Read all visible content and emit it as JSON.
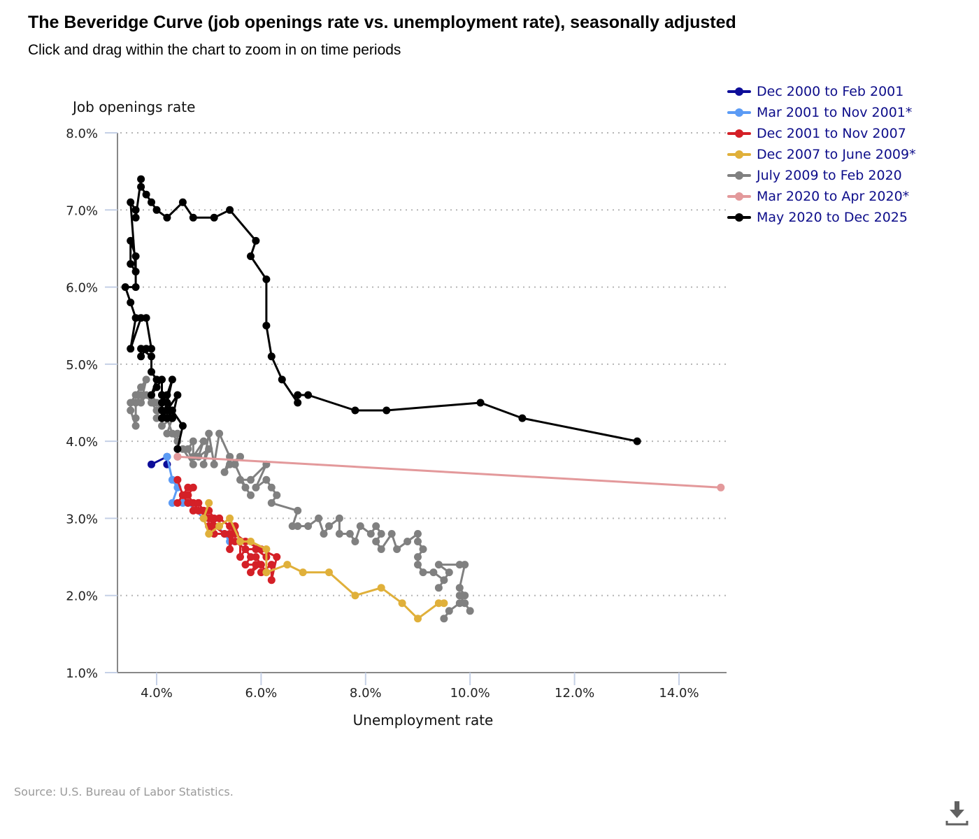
{
  "header": {
    "title": "The Beveridge Curve (job openings rate vs. unemployment rate), seasonally adjusted",
    "subtitle": "Click and drag within the chart to zoom in on time periods"
  },
  "footer": {
    "source": "Source: U.S. Bureau of Labor Statistics.",
    "download_icon": "download-icon"
  },
  "chart_data": {
    "type": "line",
    "title": "The Beveridge Curve (job openings rate vs. unemployment rate), seasonally adjusted",
    "xlabel": "Unemployment rate",
    "ylabel": "Job openings rate",
    "xlim": [
      3.3,
      14.9
    ],
    "ylim": [
      1.0,
      8.0
    ],
    "x_ticks": [
      4.0,
      6.0,
      8.0,
      10.0,
      12.0,
      14.0
    ],
    "x_tick_labels": [
      "4.0%",
      "6.0%",
      "8.0%",
      "10.0%",
      "12.0%",
      "14.0%"
    ],
    "y_ticks": [
      1.0,
      2.0,
      3.0,
      4.0,
      5.0,
      6.0,
      7.0,
      8.0
    ],
    "y_tick_labels": [
      "1.0%",
      "2.0%",
      "3.0%",
      "4.0%",
      "5.0%",
      "6.0%",
      "7.0%",
      "8.0%"
    ],
    "grid": "horizontal-dotted",
    "legend_position": "top-right",
    "series": [
      {
        "name": "Dec 2000 to Feb 2001",
        "color": "#0d0d99",
        "points": [
          [
            3.9,
            3.7
          ],
          [
            4.2,
            3.8
          ],
          [
            4.2,
            3.7
          ]
        ]
      },
      {
        "name": "Mar 2001 to Nov 2001*",
        "color": "#5b9bf5",
        "points": [
          [
            4.2,
            3.8
          ],
          [
            4.3,
            3.5
          ],
          [
            4.4,
            3.4
          ],
          [
            4.3,
            3.2
          ],
          [
            4.5,
            3.2
          ],
          [
            4.6,
            3.2
          ],
          [
            4.9,
            3.0
          ],
          [
            5.0,
            3.0
          ],
          [
            5.3,
            2.8
          ],
          [
            5.4,
            2.7
          ],
          [
            5.6,
            2.7
          ]
        ]
      },
      {
        "name": "Dec 2001 to Nov 2007",
        "color": "#d42027",
        "points": [
          [
            4.4,
            3.5
          ],
          [
            4.5,
            3.3
          ],
          [
            4.4,
            3.2
          ],
          [
            4.6,
            3.4
          ],
          [
            4.7,
            3.4
          ],
          [
            4.6,
            3.3
          ],
          [
            4.7,
            3.2
          ],
          [
            4.8,
            3.2
          ],
          [
            4.7,
            3.1
          ],
          [
            4.9,
            3.1
          ],
          [
            5.0,
            3.1
          ],
          [
            5.1,
            3.0
          ],
          [
            5.2,
            3.0
          ],
          [
            5.0,
            2.9
          ],
          [
            5.1,
            2.8
          ],
          [
            5.4,
            2.8
          ],
          [
            5.4,
            2.6
          ],
          [
            5.5,
            2.9
          ],
          [
            5.6,
            2.7
          ],
          [
            5.6,
            2.5
          ],
          [
            5.7,
            2.6
          ],
          [
            5.8,
            2.5
          ],
          [
            5.7,
            2.4
          ],
          [
            5.9,
            2.4
          ],
          [
            5.8,
            2.3
          ],
          [
            6.0,
            2.4
          ],
          [
            5.9,
            2.5
          ],
          [
            6.1,
            2.3
          ],
          [
            6.0,
            2.3
          ],
          [
            6.2,
            2.4
          ],
          [
            6.2,
            2.2
          ],
          [
            6.3,
            2.5
          ],
          [
            6.0,
            2.6
          ],
          [
            5.7,
            2.7
          ],
          [
            5.5,
            2.8
          ],
          [
            5.4,
            2.9
          ],
          [
            5.2,
            3.0
          ],
          [
            5.0,
            3.0
          ],
          [
            4.8,
            3.1
          ],
          [
            4.7,
            3.2
          ],
          [
            4.6,
            3.3
          ],
          [
            4.5,
            3.3
          ],
          [
            4.6,
            3.2
          ],
          [
            4.8,
            3.2
          ],
          [
            4.9,
            3.1
          ],
          [
            5.0,
            3.0
          ],
          [
            5.1,
            2.9
          ],
          [
            5.3,
            2.8
          ],
          [
            5.5,
            2.7
          ],
          [
            5.7,
            2.6
          ],
          [
            5.9,
            2.6
          ],
          [
            6.1,
            2.5
          ]
        ]
      },
      {
        "name": "Dec 2007 to June 2009*",
        "color": "#e0b03a",
        "points": [
          [
            5.0,
            3.2
          ],
          [
            4.9,
            3.0
          ],
          [
            5.0,
            2.8
          ],
          [
            5.2,
            2.9
          ],
          [
            5.4,
            3.0
          ],
          [
            5.6,
            2.7
          ],
          [
            5.8,
            2.7
          ],
          [
            6.1,
            2.6
          ],
          [
            6.1,
            2.3
          ],
          [
            6.5,
            2.4
          ],
          [
            6.8,
            2.3
          ],
          [
            7.3,
            2.3
          ],
          [
            7.8,
            2.0
          ],
          [
            8.3,
            2.1
          ],
          [
            8.7,
            1.9
          ],
          [
            9.0,
            1.7
          ],
          [
            9.4,
            1.9
          ],
          [
            9.5,
            1.9
          ]
        ]
      },
      {
        "name": "July 2009 to Feb 2020",
        "color": "#808080",
        "points": [
          [
            9.5,
            1.7
          ],
          [
            9.6,
            1.8
          ],
          [
            9.8,
            1.9
          ],
          [
            9.9,
            1.9
          ],
          [
            10.0,
            1.8
          ],
          [
            9.8,
            2.0
          ],
          [
            9.9,
            2.0
          ],
          [
            9.8,
            2.1
          ],
          [
            9.9,
            2.4
          ],
          [
            9.8,
            2.4
          ],
          [
            9.4,
            2.4
          ],
          [
            9.6,
            2.3
          ],
          [
            9.4,
            2.1
          ],
          [
            9.5,
            2.2
          ],
          [
            9.3,
            2.3
          ],
          [
            9.1,
            2.3
          ],
          [
            9.0,
            2.4
          ],
          [
            9.0,
            2.5
          ],
          [
            9.1,
            2.6
          ],
          [
            9.0,
            2.7
          ],
          [
            9.0,
            2.8
          ],
          [
            8.8,
            2.7
          ],
          [
            8.6,
            2.6
          ],
          [
            8.5,
            2.8
          ],
          [
            8.3,
            2.6
          ],
          [
            8.2,
            2.7
          ],
          [
            8.3,
            2.8
          ],
          [
            8.2,
            2.9
          ],
          [
            8.1,
            2.8
          ],
          [
            7.9,
            2.9
          ],
          [
            7.8,
            2.7
          ],
          [
            7.7,
            2.8
          ],
          [
            7.5,
            2.8
          ],
          [
            7.5,
            3.0
          ],
          [
            7.3,
            2.9
          ],
          [
            7.2,
            2.8
          ],
          [
            7.1,
            3.0
          ],
          [
            6.9,
            2.9
          ],
          [
            6.7,
            2.9
          ],
          [
            6.6,
            2.9
          ],
          [
            6.7,
            3.1
          ],
          [
            6.2,
            3.2
          ],
          [
            6.3,
            3.3
          ],
          [
            6.2,
            3.4
          ],
          [
            6.1,
            3.5
          ],
          [
            5.9,
            3.4
          ],
          [
            6.1,
            3.7
          ],
          [
            5.8,
            3.5
          ],
          [
            5.6,
            3.5
          ],
          [
            5.8,
            3.3
          ],
          [
            5.7,
            3.4
          ],
          [
            5.5,
            3.7
          ],
          [
            5.6,
            3.8
          ],
          [
            5.4,
            3.7
          ],
          [
            5.3,
            3.6
          ],
          [
            5.4,
            3.8
          ],
          [
            5.2,
            4.1
          ],
          [
            5.1,
            3.7
          ],
          [
            5.0,
            4.1
          ],
          [
            4.9,
            3.7
          ],
          [
            5.0,
            3.9
          ],
          [
            4.8,
            3.8
          ],
          [
            4.9,
            4.0
          ],
          [
            4.7,
            3.8
          ],
          [
            4.7,
            4.0
          ],
          [
            4.6,
            3.9
          ],
          [
            4.7,
            3.7
          ],
          [
            4.5,
            3.9
          ],
          [
            4.4,
            3.9
          ],
          [
            4.4,
            4.1
          ],
          [
            4.2,
            4.1
          ],
          [
            4.3,
            4.3
          ],
          [
            4.1,
            4.2
          ],
          [
            4.1,
            4.3
          ],
          [
            4.0,
            4.3
          ],
          [
            4.1,
            4.5
          ],
          [
            4.0,
            4.4
          ],
          [
            3.9,
            4.5
          ],
          [
            3.8,
            4.6
          ],
          [
            3.7,
            4.5
          ],
          [
            3.8,
            4.8
          ],
          [
            3.7,
            4.7
          ],
          [
            3.6,
            4.6
          ],
          [
            3.5,
            4.5
          ],
          [
            3.5,
            4.4
          ],
          [
            3.6,
            4.2
          ],
          [
            3.6,
            4.3
          ],
          [
            3.6,
            4.5
          ],
          [
            3.7,
            4.6
          ],
          [
            3.9,
            4.6
          ],
          [
            4.0,
            4.5
          ],
          [
            4.1,
            4.4
          ],
          [
            4.2,
            4.3
          ],
          [
            4.3,
            4.1
          ],
          [
            4.4,
            4.0
          ],
          [
            4.4,
            3.8
          ]
        ]
      },
      {
        "name": "Mar 2020 to Apr 2020*",
        "color": "#e3999b",
        "points": [
          [
            4.4,
            3.8
          ],
          [
            14.8,
            3.4
          ]
        ]
      },
      {
        "name": "May 2020 to Dec 2025",
        "color": "#000000",
        "points": [
          [
            13.2,
            4.0
          ],
          [
            11.0,
            4.3
          ],
          [
            10.2,
            4.5
          ],
          [
            8.4,
            4.4
          ],
          [
            7.8,
            4.4
          ],
          [
            6.9,
            4.6
          ],
          [
            6.7,
            4.6
          ],
          [
            6.7,
            4.5
          ],
          [
            6.4,
            4.8
          ],
          [
            6.2,
            5.1
          ],
          [
            6.1,
            5.5
          ],
          [
            6.1,
            6.1
          ],
          [
            5.8,
            6.4
          ],
          [
            5.9,
            6.6
          ],
          [
            5.4,
            7.0
          ],
          [
            5.1,
            6.9
          ],
          [
            4.7,
            6.9
          ],
          [
            4.5,
            7.1
          ],
          [
            4.2,
            6.9
          ],
          [
            4.0,
            7.0
          ],
          [
            3.9,
            7.1
          ],
          [
            3.8,
            7.2
          ],
          [
            3.7,
            7.3
          ],
          [
            3.7,
            7.4
          ],
          [
            3.6,
            6.9
          ],
          [
            3.6,
            7.0
          ],
          [
            3.5,
            7.1
          ],
          [
            3.6,
            6.2
          ],
          [
            3.5,
            6.3
          ],
          [
            3.5,
            6.6
          ],
          [
            3.6,
            6.4
          ],
          [
            3.6,
            6.0
          ],
          [
            3.4,
            6.0
          ],
          [
            3.5,
            5.8
          ],
          [
            3.6,
            5.6
          ],
          [
            3.5,
            5.2
          ],
          [
            3.7,
            5.6
          ],
          [
            3.8,
            5.6
          ],
          [
            3.9,
            5.2
          ],
          [
            3.8,
            5.2
          ],
          [
            3.7,
            5.1
          ],
          [
            3.7,
            5.2
          ],
          [
            3.9,
            5.1
          ],
          [
            3.9,
            4.9
          ],
          [
            4.0,
            4.8
          ],
          [
            3.9,
            4.6
          ],
          [
            4.0,
            4.7
          ],
          [
            4.1,
            4.8
          ],
          [
            4.1,
            4.6
          ],
          [
            4.1,
            4.5
          ],
          [
            4.1,
            4.4
          ],
          [
            4.1,
            4.3
          ],
          [
            4.2,
            4.3
          ],
          [
            4.2,
            4.6
          ],
          [
            4.3,
            4.8
          ],
          [
            4.2,
            4.5
          ],
          [
            4.2,
            4.4
          ],
          [
            4.3,
            4.3
          ],
          [
            4.4,
            4.6
          ],
          [
            4.2,
            4.4
          ],
          [
            4.1,
            4.3
          ],
          [
            4.2,
            4.5
          ],
          [
            4.3,
            4.4
          ],
          [
            4.2,
            4.3
          ],
          [
            4.3,
            4.3
          ],
          [
            4.1,
            4.6
          ],
          [
            4.5,
            4.2
          ],
          [
            4.4,
            3.9
          ]
        ]
      }
    ]
  }
}
